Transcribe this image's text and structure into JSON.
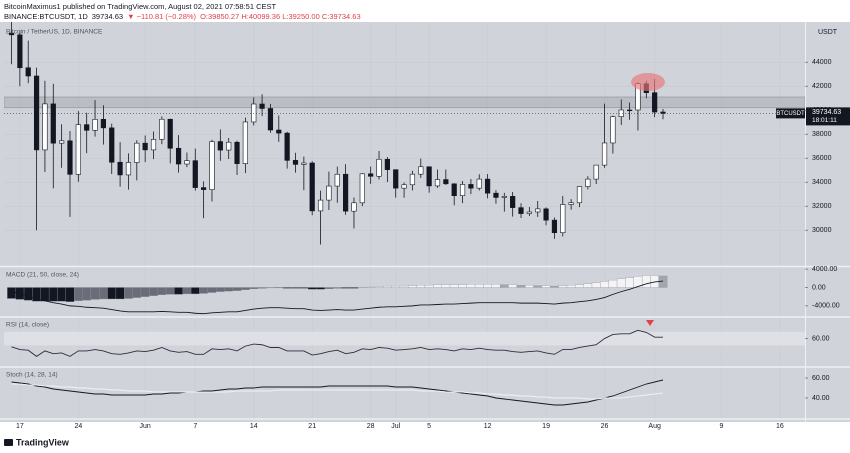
{
  "header": {
    "author": "BitcoinMaximus1 published on TradingView.com, August 02, 2021 07:58:51 CEST",
    "symbol": "BINANCE:BTCUSDT, 1D",
    "last": "39734.63",
    "change": "▼ −110.81 (−0.28%)",
    "ohlc": "O:39850.27 H:40099.36 L:39250.00 C:39734.63"
  },
  "chart_data": [
    {
      "type": "candlestick",
      "legend": "Bitcoin / TetherUS, 1D, BINANCE",
      "y_unit": "USDT",
      "x": [
        -1,
        0,
        1,
        2,
        3,
        4,
        5,
        6,
        7,
        8,
        9,
        10,
        11,
        12,
        13,
        14,
        15,
        16,
        17,
        18,
        19,
        20,
        21,
        22,
        23,
        24,
        25,
        26,
        27,
        28,
        29,
        30,
        31,
        32,
        33,
        34,
        35,
        36,
        37,
        38,
        39,
        40,
        41,
        42,
        43,
        44,
        45,
        46,
        47,
        48,
        49,
        50,
        51,
        52,
        53,
        54,
        55,
        56,
        57,
        58,
        59,
        60,
        61,
        62,
        63,
        64,
        65,
        66,
        67,
        68,
        69,
        70,
        71,
        72,
        73,
        74,
        75,
        76,
        77
      ],
      "open": [
        46426,
        46281,
        43538,
        42850,
        36690,
        40526,
        37252,
        37449,
        34655,
        38796,
        38324,
        39241,
        38529,
        35663,
        34605,
        35641,
        37253,
        36693,
        37568,
        39246,
        36829,
        35514,
        35796,
        33552,
        33380,
        37388,
        36676,
        37331,
        35546,
        39020,
        40516,
        40144,
        38349,
        38092,
        35819,
        35483,
        35600,
        31608,
        32509,
        33678,
        34663,
        31584,
        32283,
        34700,
        34494,
        35911,
        35045,
        33504,
        33786,
        34669,
        35287,
        33690,
        34220,
        33863,
        32875,
        33815,
        33502,
        34259,
        33086,
        32730,
        32820,
        31880,
        31384,
        31520,
        31778,
        30839,
        29790,
        32144,
        32287,
        33634,
        34258,
        35425,
        37269,
        39457,
        40019,
        40016,
        42206,
        41461,
        39850.27
      ],
      "high": [
        49790,
        46643,
        45799,
        43546,
        42451,
        42200,
        38830,
        38270,
        39920,
        39791,
        40841,
        40411,
        38877,
        37338,
        36400,
        37499,
        37894,
        38225,
        39476,
        39289,
        37925,
        36480,
        36800,
        34068,
        37534,
        38400,
        37680,
        37463,
        39380,
        41064,
        41330,
        40527,
        39559,
        38202,
        36457,
        36137,
        35750,
        33298,
        34881,
        35298,
        35500,
        32730,
        34749,
        35297,
        36600,
        36100,
        35057,
        33977,
        34945,
        35967,
        35293,
        35059,
        35059,
        33918,
        34100,
        34262,
        34666,
        34679,
        33340,
        33114,
        33185,
        32249,
        31935,
        32435,
        31899,
        31063,
        32858,
        32591,
        33650,
        34500,
        35398,
        40550,
        39542,
        40900,
        40640,
        42316,
        42448,
        42599,
        40099.36
      ],
      "low": [
        43825,
        42002,
        42250,
        30000,
        34850,
        33488,
        35200,
        31111,
        34031,
        36419,
        37800,
        37134,
        34684,
        33632,
        33379,
        34153,
        35667,
        35920,
        37170,
        35567,
        34800,
        35258,
        33300,
        31000,
        32396,
        35782,
        35936,
        34600,
        34757,
        38730,
        39506,
        38116,
        37365,
        35129,
        34803,
        33336,
        31251,
        28805,
        31683,
        32286,
        31275,
        30151,
        32000,
        33862,
        34225,
        34017,
        32711,
        32699,
        33316,
        34357,
        33125,
        33532,
        33777,
        32077,
        32261,
        33004,
        33306,
        32658,
        32203,
        31550,
        31133,
        31020,
        31178,
        31108,
        30408,
        29278,
        29482,
        31708,
        31925,
        33401,
        33851,
        35205,
        36383,
        38772,
        39200,
        38313,
        41000,
        39422,
        39250
      ],
      "close": [
        46281,
        43538,
        42850,
        36690,
        40526,
        37252,
        37449,
        34655,
        38796,
        38324,
        39241,
        38529,
        35663,
        34605,
        35641,
        37253,
        36693,
        37568,
        39246,
        36829,
        35514,
        35796,
        33552,
        33380,
        37388,
        36676,
        37331,
        35546,
        39020,
        40516,
        40144,
        38349,
        38092,
        35819,
        35483,
        35600,
        31608,
        32509,
        33678,
        34663,
        31584,
        32283,
        34700,
        34494,
        35911,
        35045,
        33504,
        33786,
        34669,
        35287,
        33690,
        34220,
        33863,
        32875,
        33815,
        33502,
        34259,
        33086,
        32730,
        32820,
        31880,
        31384,
        31520,
        31778,
        30839,
        29790,
        32144,
        32287,
        33634,
        34258,
        35425,
        37269,
        39457,
        40019,
        40016,
        42206,
        41461,
        39845,
        39734.63
      ],
      "up_color": "#ffffff",
      "down_color": "#131722",
      "border_color": "#131722",
      "zone": [
        40200,
        41100
      ],
      "zone_color": "#a9abb3",
      "last_label": {
        "symbol": "BTCUSDT",
        "price": 39734.63,
        "countdown": "18:01:11"
      },
      "xlim": [
        -1.9,
        94
      ],
      "xticks": [
        {
          "value": 0,
          "label": "17"
        },
        {
          "value": 7,
          "label": "24"
        },
        {
          "value": 15,
          "label": "Jun"
        },
        {
          "value": 21,
          "label": "7"
        },
        {
          "value": 28,
          "label": "14"
        },
        {
          "value": 35,
          "label": "21"
        },
        {
          "value": 42,
          "label": "28"
        },
        {
          "value": 45,
          "label": "Jul"
        },
        {
          "value": 49,
          "label": "5"
        },
        {
          "value": 56,
          "label": "12"
        },
        {
          "value": 63,
          "label": "19"
        },
        {
          "value": 70,
          "label": "26"
        },
        {
          "value": 76,
          "label": "Aug"
        },
        {
          "value": 84,
          "label": "9"
        },
        {
          "value": 91,
          "label": "16"
        }
      ],
      "ylim": [
        27100,
        47350
      ],
      "yticks": [
        30000,
        32000,
        34000,
        36000,
        38000,
        40000,
        42000,
        44000
      ],
      "grid": true
    },
    {
      "type": "macd",
      "label": "MACD (21, 50, close, 24)",
      "macd": {
        "color": "#131722",
        "values": [
          -900,
          -1300,
          -1800,
          -2600,
          -2900,
          -3300,
          -3600,
          -4000,
          -4100,
          -4300,
          -4400,
          -4500,
          -4800,
          -5100,
          -5300,
          -5300,
          -5300,
          -5300,
          -5200,
          -5300,
          -5400,
          -5400,
          -5600,
          -5700,
          -5500,
          -5400,
          -5300,
          -5300,
          -5000,
          -4700,
          -4500,
          -4400,
          -4400,
          -4500,
          -4600,
          -4600,
          -4900,
          -5000,
          -4900,
          -4800,
          -4900,
          -4900,
          -4700,
          -4500,
          -4300,
          -4200,
          -4200,
          -4100,
          -4000,
          -3800,
          -3800,
          -3700,
          -3600,
          -3600,
          -3500,
          -3400,
          -3300,
          -3300,
          -3300,
          -3300,
          -3300,
          -3400,
          -3400,
          -3400,
          -3500,
          -3600,
          -3400,
          -3300,
          -3100,
          -2900,
          -2600,
          -2200,
          -1500,
          -900,
          -400,
          200,
          800,
          1200,
          1400
        ]
      },
      "histogram": {
        "values": [
          -2400,
          -2600,
          -2800,
          -3000,
          -3000,
          -3000,
          -3000,
          -3100,
          -2900,
          -2800,
          -2600,
          -2500,
          -2500,
          -2500,
          -2400,
          -2200,
          -2000,
          -1800,
          -1600,
          -1500,
          -1500,
          -1400,
          -1400,
          -1300,
          -1100,
          -900,
          -800,
          -700,
          -500,
          -300,
          -200,
          -100,
          -100,
          -200,
          -200,
          -200,
          -400,
          -400,
          -300,
          -200,
          -200,
          -200,
          0,
          100,
          200,
          300,
          300,
          300,
          400,
          500,
          500,
          600,
          600,
          600,
          600,
          700,
          700,
          700,
          700,
          600,
          600,
          500,
          500,
          400,
          400,
          300,
          400,
          500,
          600,
          800,
          1000,
          1300,
          1600,
          1900,
          2100,
          2400,
          2600,
          2600,
          2500
        ]
      },
      "colors": {
        "neg_growing": "#131722",
        "neg_falling": "#6a6d78",
        "pos_growing": "#f4f4f6",
        "pos_falling": "#a3a6af"
      },
      "ylim": [
        -6200,
        4450
      ],
      "yticks": [
        {
          "value": 4000,
          "label": "4000.00"
        },
        {
          "value": 0,
          "label": "0.00"
        },
        {
          "value": -4000,
          "label": "-4000.00"
        }
      ]
    },
    {
      "type": "rsi",
      "label": "RSI (14, close)",
      "values": [
        48,
        44,
        43,
        34,
        42,
        38,
        39,
        34,
        42,
        42,
        44,
        42,
        38,
        37,
        39,
        42,
        41,
        43,
        47,
        42,
        40,
        41,
        37,
        37,
        45,
        44,
        45,
        42,
        49,
        52,
        51,
        47,
        47,
        42,
        42,
        42,
        36,
        38,
        41,
        43,
        38,
        40,
        45,
        44,
        47,
        46,
        43,
        44,
        45,
        47,
        44,
        45,
        44,
        42,
        45,
        44,
        46,
        44,
        43,
        43,
        41,
        40,
        41,
        42,
        39,
        37,
        44,
        44,
        47,
        49,
        51,
        60,
        66,
        67,
        67,
        72,
        69,
        62,
        62
      ],
      "color": "#2a2e39",
      "band": [
        50,
        70
      ],
      "band_color": "#dfe0e5",
      "ylim": [
        20,
        90
      ],
      "yticks": [
        {
          "value": 60,
          "label": "60.00"
        }
      ]
    },
    {
      "type": "stoch",
      "label": "Stoch (14, 28, 14)",
      "series": [
        {
          "color": "#131722",
          "values": [
            56,
            55,
            54,
            52,
            51,
            49,
            48,
            47,
            46,
            45,
            44,
            44,
            43,
            43,
            43,
            43,
            43,
            44,
            44,
            45,
            45,
            46,
            46,
            47,
            47,
            48,
            49,
            49,
            50,
            50,
            51,
            51,
            51,
            51,
            51,
            51,
            51,
            51,
            52,
            52,
            52,
            52,
            52,
            52,
            52,
            52,
            51,
            51,
            51,
            50,
            49,
            48,
            47,
            46,
            45,
            44,
            43,
            42,
            40,
            39,
            38,
            37,
            36,
            35,
            34,
            33,
            33,
            34,
            35,
            36,
            38,
            40,
            42,
            45,
            48,
            51,
            54,
            56,
            58
          ]
        },
        {
          "color": "#f2f2f4",
          "values": [
            54,
            54,
            53,
            53,
            52,
            52,
            51,
            51,
            50,
            50,
            49,
            49,
            48,
            48,
            47,
            47,
            47,
            46,
            46,
            46,
            46,
            46,
            46,
            46,
            46,
            46,
            46,
            47,
            47,
            47,
            47,
            47,
            48,
            48,
            48,
            48,
            48,
            48,
            48,
            48,
            48,
            48,
            48,
            48,
            48,
            48,
            48,
            48,
            48,
            47,
            47,
            47,
            46,
            46,
            46,
            45,
            45,
            44,
            44,
            43,
            43,
            42,
            42,
            41,
            41,
            40,
            40,
            40,
            40,
            39,
            39,
            40,
            40,
            40,
            41,
            42,
            43,
            44,
            45
          ]
        }
      ],
      "ylim": [
        20,
        70
      ],
      "yticks": [
        {
          "value": 60,
          "label": "60.00"
        },
        {
          "value": 40,
          "label": "40.00"
        }
      ]
    }
  ],
  "footer": {
    "brand": "TradingView"
  }
}
